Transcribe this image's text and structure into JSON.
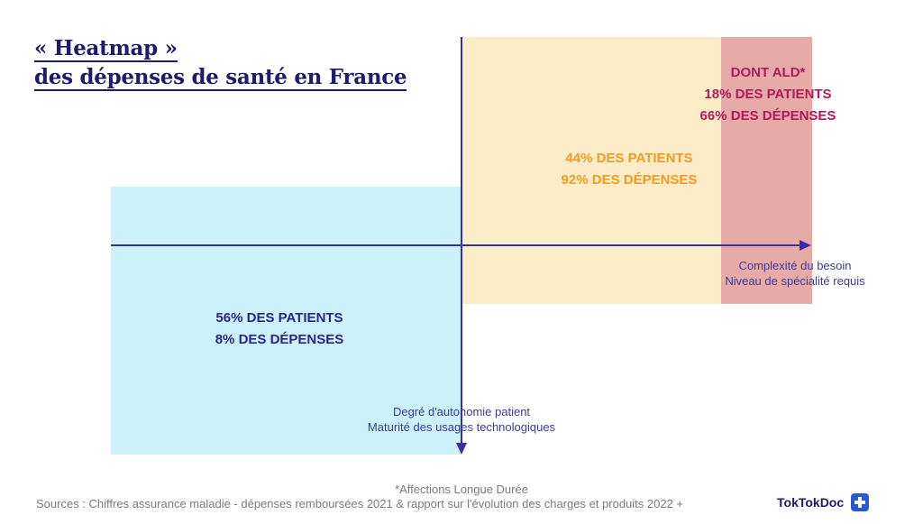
{
  "title": {
    "line1": "« Heatmap »",
    "line2": "des dépenses de santé en France"
  },
  "quadrants": {
    "blue": {
      "line1": "56% des patients",
      "line2": "8% des dépenses",
      "color": "#cdf1fa",
      "text_color": "#2b248a"
    },
    "orange": {
      "line1": "44% des patients",
      "line2": "92% des dépenses",
      "color": "#fdecc8",
      "text_color": "#f39a1f"
    },
    "red": {
      "line1": "Dont ALD*",
      "line2": "18% des patients",
      "line3": "66% des dépenses",
      "color": "#e6aba7",
      "text_color": "#b2185a"
    }
  },
  "axes": {
    "x": {
      "line1": "Complexité du besoin",
      "line2": "Niveau de spécialité requis"
    },
    "y": {
      "line1": "Degré d'autonomie patient",
      "line2": "Maturité des usages technologiques"
    },
    "color": "#3a2ea8"
  },
  "footnote": "*Affections Longue Durée",
  "sources": "Sources : Chiffres assurance maladie - dépenses remboursées 2021 & rapport sur l'évolution des charges et produits 2022 +",
  "brand": {
    "name": "TokTokDoc",
    "icon": "medical-cross-icon"
  }
}
